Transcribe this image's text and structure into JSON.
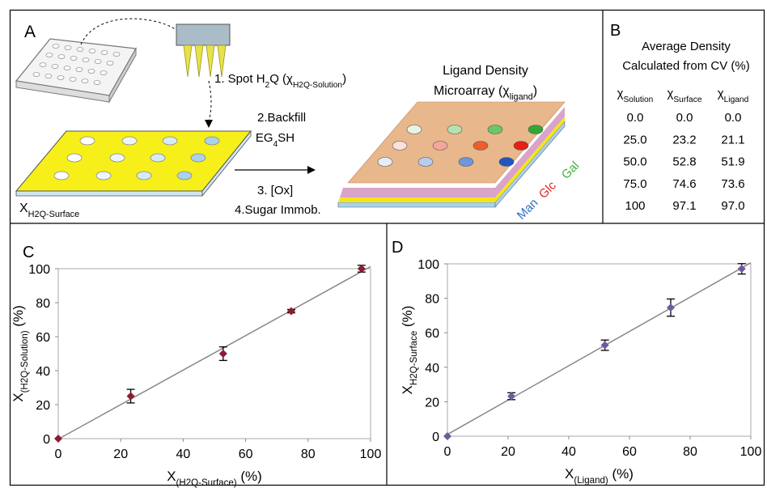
{
  "panel_a": {
    "letter": "A",
    "step1": [
      "1. Spot H",
      "2",
      "Q (χ",
      "H2Q-Solution",
      ")"
    ],
    "step2_line1": "2.Backfill",
    "step2_line2": [
      "EG",
      "4",
      "SH"
    ],
    "step3": "3. [Ox]",
    "step4": "4.Sugar Immob.",
    "surface_label": [
      "X",
      "H2Q-Surface"
    ],
    "microarray_line1": "Ligand Density",
    "microarray_line2": [
      "Microarray (χ",
      "ligand",
      ")"
    ],
    "sugars": [
      "Gal",
      "Glc",
      "Man"
    ]
  },
  "panel_b": {
    "letter": "B",
    "title_line1": "Average Density",
    "title_line2": "Calculated from CV (%)",
    "table": {
      "header": [
        [
          "χ",
          "Solution"
        ],
        [
          "χ",
          "Surface"
        ],
        [
          "χ",
          "Ligand"
        ]
      ],
      "rows": [
        [
          "0.0",
          "0.0",
          "0.0"
        ],
        [
          "25.0",
          "23.2",
          "21.1"
        ],
        [
          "50.0",
          "52.8",
          "51.9"
        ],
        [
          "75.0",
          "74.6",
          "73.6"
        ],
        [
          "100",
          "97.1",
          "97.0"
        ]
      ]
    }
  },
  "chart_data": [
    {
      "type": "scatter",
      "title": "C",
      "x_label": [
        "X",
        "(H2Q-Surface)",
        " (%)"
      ],
      "y_label": [
        "X",
        "(H2Q-Solution)",
        " (%)"
      ],
      "x": [
        0.0,
        23.2,
        52.8,
        74.6,
        97.1
      ],
      "series": [
        {
          "color": "#8b1c34",
          "values": [
            0,
            25,
            50,
            75,
            100
          ],
          "errors": [
            0,
            4,
            4,
            1,
            2
          ]
        }
      ],
      "xlim": [
        0,
        100
      ],
      "xticks": [
        0,
        20,
        40,
        60,
        80,
        100
      ],
      "ylim": [
        0,
        100
      ],
      "yticks": [
        0,
        20,
        40,
        60,
        80,
        100
      ],
      "trendline": true
    },
    {
      "type": "scatter",
      "title": "D",
      "x_label": [
        "X",
        "(Ligand)",
        " (%)"
      ],
      "y_label": [
        "X",
        "H2Q-Surface",
        " (%)"
      ],
      "x": [
        0.0,
        21.1,
        51.9,
        73.6,
        97.0
      ],
      "series": [
        {
          "color": "#6f5aa0",
          "values": [
            0.0,
            23.2,
            52.8,
            74.6,
            97.1
          ],
          "errors": [
            0,
            2,
            3,
            5,
            3
          ]
        }
      ],
      "xlim": [
        0,
        100
      ],
      "xticks": [
        0,
        20,
        40,
        60,
        80,
        100
      ],
      "ylim": [
        0,
        100
      ],
      "yticks": [
        0,
        20,
        40,
        60,
        80,
        100
      ],
      "trendline": true
    }
  ]
}
